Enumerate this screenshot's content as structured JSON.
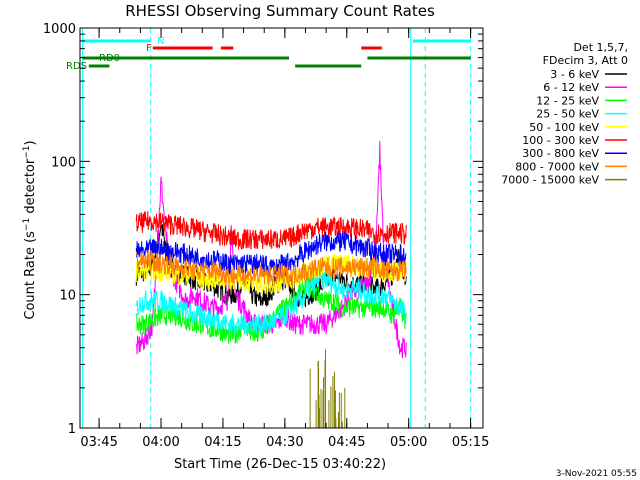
{
  "chart_data": {
    "type": "line",
    "title": "RHESSI Observing Summary Count Rates",
    "xlabel": "Start Time (26-Dec-15 03:40:22)",
    "ylabel": "Count Rate (s⁻¹ detector⁻¹)",
    "ylabel_parts": {
      "main": "Count Rate (s",
      "sup1": "−1",
      "mid": " detector",
      "sup2": "−1",
      "end": ")"
    },
    "yscale": "log",
    "ylim": [
      1,
      1000
    ],
    "xlim_min": [
      220.37,
      318
    ],
    "ytick_labels": [
      "1",
      "10",
      "100",
      "1000"
    ],
    "xticks": [
      {
        "label": "03:45",
        "t": 225
      },
      {
        "label": "04:00",
        "t": 240
      },
      {
        "label": "04:15",
        "t": 255
      },
      {
        "label": "04:30",
        "t": 270
      },
      {
        "label": "04:45",
        "t": 285
      },
      {
        "label": "05:00",
        "t": 300
      },
      {
        "label": "05:15",
        "t": 315
      }
    ],
    "legend_header": [
      "Det 1,5,7,",
      "FDecim 3, Att 0"
    ],
    "legend_position": "top-right, outside plot",
    "series": [
      {
        "name": "3 - 6 keV",
        "color": "#000000",
        "t": [
          234,
          236,
          238,
          240,
          242,
          244,
          246,
          248,
          250,
          252,
          254,
          256,
          258,
          260,
          262,
          264,
          266,
          268,
          270,
          272,
          274,
          276,
          278,
          280,
          282,
          284,
          286,
          288,
          290,
          292,
          294,
          296,
          298,
          299.5
        ],
        "values": [
          14,
          15,
          16,
          34,
          16,
          15,
          14,
          13,
          12,
          12,
          11,
          10,
          10,
          13,
          10,
          9,
          10,
          12,
          13,
          11,
          9,
          10,
          11,
          13,
          14,
          13,
          12,
          12,
          12,
          11,
          12,
          14,
          20,
          12
        ]
      },
      {
        "name": "6 - 12 keV",
        "color": "#ff00ff",
        "t": [
          234,
          236,
          238,
          239,
          240,
          242,
          244,
          246,
          248,
          250,
          252,
          254,
          256,
          257,
          258,
          260,
          262,
          264,
          266,
          268,
          270,
          272,
          274,
          276,
          278,
          280,
          282,
          284,
          286,
          288,
          290,
          292,
          293,
          294,
          296,
          298,
          299.5
        ],
        "values": [
          4,
          4.5,
          6,
          20,
          70,
          16,
          12,
          9,
          10,
          9,
          8,
          8,
          9,
          28,
          10,
          8,
          6,
          6,
          6,
          6,
          7,
          6,
          6,
          6,
          6,
          6,
          7,
          8,
          10,
          11,
          12,
          20,
          120,
          20,
          8,
          4,
          4
        ]
      },
      {
        "name": "12 - 25 keV",
        "color": "#00ff00",
        "t": [
          234,
          236,
          238,
          240,
          242,
          244,
          246,
          248,
          250,
          252,
          254,
          256,
          258,
          260,
          262,
          264,
          266,
          268,
          270,
          272,
          274,
          276,
          278,
          280,
          282,
          284,
          286,
          288,
          290,
          292,
          294,
          296,
          298,
          299.5
        ],
        "values": [
          6,
          6,
          6.5,
          7,
          7,
          7,
          6.5,
          6,
          6,
          5.5,
          5.5,
          5,
          5,
          6,
          5,
          5,
          6,
          7,
          8,
          9,
          11,
          12,
          10,
          9,
          9,
          8,
          8,
          8,
          8,
          8,
          8,
          7,
          8,
          6
        ]
      },
      {
        "name": "25 - 50 keV",
        "color": "#00ffff",
        "t": [
          234,
          236,
          238,
          240,
          242,
          244,
          246,
          248,
          250,
          252,
          254,
          256,
          258,
          260,
          262,
          264,
          266,
          268,
          270,
          272,
          274,
          276,
          278,
          280,
          282,
          284,
          286,
          288,
          290,
          292,
          294,
          296,
          298,
          299.5
        ],
        "values": [
          8,
          9,
          9,
          9,
          8.5,
          8,
          7.5,
          7,
          7,
          6.5,
          6.5,
          6,
          6,
          6,
          6,
          6,
          6,
          6.5,
          7,
          8,
          9,
          11,
          13,
          13,
          12,
          11,
          11,
          11,
          10,
          10,
          10,
          9,
          8,
          7
        ]
      },
      {
        "name": "50 - 100 keV",
        "color": "#ffff00",
        "t": [
          234,
          236,
          238,
          240,
          242,
          244,
          246,
          248,
          250,
          252,
          254,
          256,
          258,
          260,
          262,
          264,
          266,
          268,
          270,
          272,
          274,
          276,
          278,
          280,
          282,
          284,
          286,
          288,
          290,
          292,
          294,
          296,
          298,
          299.5
        ],
        "values": [
          15,
          15,
          15,
          15,
          15,
          14,
          14,
          14,
          13,
          13,
          13,
          13,
          13,
          13,
          12,
          12,
          12,
          12,
          13,
          13,
          14,
          15,
          16,
          17,
          17,
          17,
          17,
          16,
          16,
          15,
          15,
          15,
          15,
          15
        ]
      },
      {
        "name": "100 - 300 keV",
        "color": "#ff0000",
        "t": [
          234,
          236,
          238,
          240,
          242,
          244,
          246,
          248,
          250,
          252,
          254,
          256,
          258,
          260,
          262,
          264,
          266,
          268,
          270,
          272,
          274,
          276,
          278,
          280,
          282,
          284,
          286,
          288,
          290,
          292,
          294,
          296,
          298,
          299.5
        ],
        "values": [
          34,
          35,
          36,
          35,
          34,
          33,
          32,
          31,
          30,
          29,
          28,
          27,
          26,
          26,
          26,
          26,
          26,
          26,
          26,
          27,
          30,
          31,
          32,
          32,
          32,
          32,
          32,
          31,
          30,
          29,
          29,
          29,
          29,
          28
        ]
      },
      {
        "name": "300 - 800 keV",
        "color": "#0000ff",
        "t": [
          234,
          236,
          238,
          240,
          242,
          244,
          246,
          248,
          250,
          252,
          254,
          256,
          258,
          260,
          262,
          264,
          266,
          268,
          270,
          272,
          274,
          276,
          278,
          280,
          282,
          284,
          286,
          288,
          290,
          292,
          294,
          296,
          298,
          299.5
        ],
        "values": [
          21,
          21,
          22,
          22,
          21,
          21,
          20,
          19,
          19,
          18,
          18,
          17,
          17,
          17,
          17,
          17,
          16,
          16,
          17,
          18,
          20,
          22,
          24,
          25,
          25,
          25,
          24,
          23,
          22,
          21,
          20,
          20,
          20,
          19
        ]
      },
      {
        "name": "800 - 7000 keV",
        "color": "#ff8000",
        "t": [
          234,
          236,
          238,
          240,
          242,
          244,
          246,
          248,
          250,
          252,
          254,
          256,
          258,
          260,
          262,
          264,
          266,
          268,
          270,
          272,
          274,
          276,
          278,
          280,
          282,
          284,
          286,
          288,
          290,
          292,
          294,
          296,
          298,
          299.5
        ],
        "values": [
          18,
          18,
          18,
          17,
          17,
          16,
          16,
          15,
          15,
          15,
          15,
          14,
          14,
          14,
          14,
          14,
          14,
          14,
          14,
          14,
          15,
          15,
          16,
          16,
          16,
          16,
          16,
          16,
          16,
          16,
          15,
          15,
          15,
          15
        ]
      },
      {
        "name": "7000 - 15000 keV",
        "color": "#808000",
        "t": [
          276,
          277,
          278,
          279,
          280,
          281,
          282,
          283,
          284,
          285
        ],
        "values": [
          2.5,
          1.6,
          2.2,
          1.4,
          3,
          1.3,
          1.8,
          1.2,
          1.5,
          1.1
        ]
      }
    ],
    "flags": [
      {
        "label": "N",
        "color": "#00ffff",
        "segments": [
          [
            221,
            237.5
          ],
          [
            301,
            315
          ]
        ]
      },
      {
        "label": "F",
        "color": "#ff0000",
        "segments": [
          [
            238,
            252.5
          ],
          [
            254.5,
            257.5
          ],
          [
            288.5,
            293.5
          ]
        ]
      },
      {
        "label": "RD0",
        "color": "#008000",
        "segments": [
          [
            221,
            271
          ],
          [
            290,
            315
          ]
        ]
      },
      {
        "label": "RDS",
        "color": "#008000",
        "segments": [
          [
            222.5,
            227.5
          ],
          [
            272.5,
            288.5
          ]
        ]
      }
    ],
    "solid_vlines": [
      221,
      300.5
    ],
    "dashed_vlines": [
      237.5,
      304,
      315
    ]
  },
  "footer_date": "3-Nov-2021 05:55"
}
